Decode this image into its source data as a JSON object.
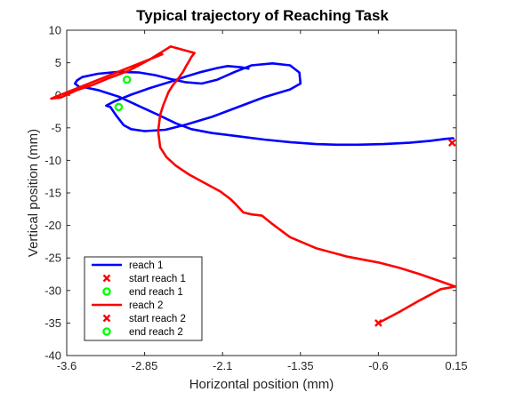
{
  "chart_data": {
    "type": "line",
    "title": "Typical trajectory of Reaching Task",
    "xlabel": "Horizontal position (mm)",
    "ylabel": "Vertical position (mm)",
    "xlim": [
      -3.6,
      0.15
    ],
    "ylim": [
      -40,
      10
    ],
    "xticks": [
      -3.6,
      -2.85,
      -2.1,
      -1.35,
      -0.6,
      0.15
    ],
    "xtick_labels": [
      "-3.6",
      "-2.85",
      "-2.1",
      "-1.35",
      "-0.6",
      "0.15"
    ],
    "yticks": [
      -40,
      -35,
      -30,
      -25,
      -20,
      -15,
      -10,
      -5,
      0,
      5,
      10
    ],
    "ytick_labels": [
      "-40",
      "-35",
      "-30",
      "-25",
      "-20",
      "-15",
      "-10",
      "-5",
      "0",
      "5",
      "10"
    ],
    "grid": false,
    "legend_position": "bottom-left",
    "colors": {
      "reach1": "#0000ff",
      "reach2": "#ff0000",
      "start": "#ff0000",
      "end": "#00ff00"
    },
    "series": [
      {
        "name": "reach 1",
        "kind": "line",
        "color": "#0000ff",
        "x": [
          0.12,
          0.05,
          -0.1,
          -0.3,
          -0.55,
          -0.8,
          -1.0,
          -1.2,
          -1.45,
          -1.7,
          -1.95,
          -2.2,
          -2.4,
          -2.55,
          -2.72,
          -2.9,
          -3.1,
          -3.3,
          -3.42,
          -3.48,
          -3.52,
          -3.5,
          -3.45,
          -3.3,
          -3.1,
          -2.9,
          -2.75,
          -2.6,
          -2.45,
          -2.3,
          -2.15,
          -1.98,
          -1.82,
          -1.62,
          -1.45,
          -1.36,
          -1.35,
          -1.45,
          -1.7,
          -1.95,
          -2.2,
          -2.45,
          -2.65,
          -2.85,
          -2.98,
          -3.05,
          -3.12,
          -3.18,
          -3.22,
          -3.15,
          -2.98,
          -2.8,
          -2.62,
          -2.45,
          -2.3,
          -2.15,
          -2.05,
          -1.92,
          -1.85
        ],
        "y": [
          -6.6,
          -6.7,
          -7.0,
          -7.3,
          -7.5,
          -7.6,
          -7.6,
          -7.5,
          -7.2,
          -6.8,
          -6.3,
          -5.8,
          -5.2,
          -4.3,
          -3.0,
          -1.7,
          -0.2,
          0.8,
          1.2,
          1.3,
          1.8,
          2.3,
          2.8,
          3.3,
          3.6,
          3.5,
          3.1,
          2.5,
          2.0,
          1.8,
          2.4,
          3.6,
          4.6,
          4.9,
          4.6,
          3.5,
          1.8,
          0.9,
          -0.3,
          -1.8,
          -3.3,
          -4.5,
          -5.3,
          -5.5,
          -5.2,
          -4.6,
          -3.2,
          -1.8,
          -1.6,
          -1.0,
          0.1,
          1.1,
          2.0,
          2.9,
          3.6,
          4.2,
          4.5,
          4.3,
          4.1
        ]
      },
      {
        "name": "start reach 1",
        "kind": "marker-x",
        "color": "#ff0000",
        "x": [
          0.11
        ],
        "y": [
          -7.3
        ]
      },
      {
        "name": "end reach 1",
        "kind": "marker-o",
        "color": "#00ff00",
        "x": [
          -3.1
        ],
        "y": [
          -1.8
        ]
      },
      {
        "name": "reach 2",
        "kind": "line",
        "color": "#ff0000",
        "x": [
          -0.6,
          -0.4,
          -0.2,
          0.0,
          0.14,
          0.0,
          -0.2,
          -0.4,
          -0.6,
          -0.9,
          -1.2,
          -1.45,
          -1.62,
          -1.72,
          -1.82,
          -1.9,
          -1.97,
          -2.02,
          -2.12,
          -2.27,
          -2.42,
          -2.55,
          -2.64,
          -2.7,
          -2.72,
          -2.7,
          -2.67,
          -2.62,
          -2.58,
          -2.52,
          -2.48,
          -2.45,
          -2.42,
          -2.4,
          -2.38,
          -2.37,
          -2.6,
          -2.8,
          -3.0,
          -3.2,
          -3.35,
          -3.5,
          -3.6,
          -3.65,
          -3.75,
          -2.68
        ],
        "y": [
          -35.0,
          -33.3,
          -31.5,
          -29.8,
          -29.4,
          -28.6,
          -27.5,
          -26.5,
          -25.7,
          -24.8,
          -23.5,
          -21.8,
          -19.8,
          -18.5,
          -18.3,
          -18.0,
          -16.8,
          -16.0,
          -14.8,
          -13.5,
          -12.2,
          -10.8,
          -9.5,
          -8.0,
          -5.5,
          -3.0,
          -1.5,
          0.5,
          1.5,
          2.7,
          3.6,
          4.5,
          5.3,
          5.9,
          6.3,
          6.5,
          7.5,
          5.5,
          3.8,
          2.6,
          1.6,
          0.8,
          0.1,
          -0.3,
          -0.5,
          6.3
        ]
      },
      {
        "name": "start reach 2",
        "kind": "marker-x",
        "color": "#ff0000",
        "x": [
          -0.6
        ],
        "y": [
          -35.0
        ]
      },
      {
        "name": "end reach 2",
        "kind": "marker-o",
        "color": "#00ff00",
        "x": [
          -3.02
        ],
        "y": [
          2.4
        ]
      }
    ]
  }
}
